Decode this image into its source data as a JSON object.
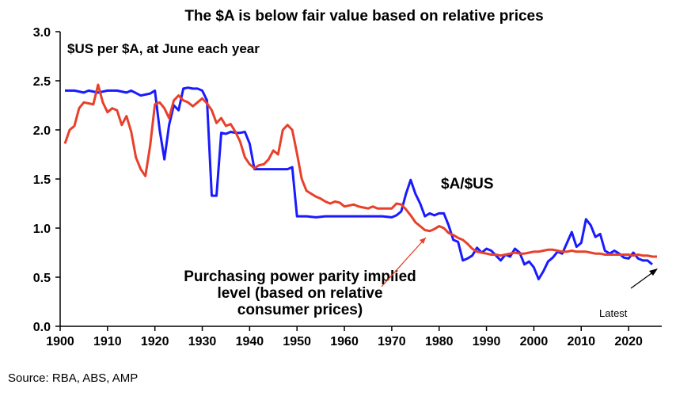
{
  "chart_data": {
    "type": "line",
    "title": "The $A is below fair value based on relative prices",
    "subtitle": "$US per $A, at June each year",
    "ylim": [
      0,
      3.0
    ],
    "yticks": [
      "0.0",
      "0.5",
      "1.0",
      "1.5",
      "2.0",
      "2.5",
      "3.0"
    ],
    "xlim": [
      1900,
      2027
    ],
    "xticks": [
      "1900",
      "1910",
      "1920",
      "1930",
      "1940",
      "1950",
      "1960",
      "1970",
      "1980",
      "1990",
      "2000",
      "2010",
      "2020"
    ],
    "grid": false,
    "series": [
      {
        "name": "$A/$US",
        "color": "#1a1aff",
        "points": [
          [
            1901,
            2.4
          ],
          [
            1903,
            2.4
          ],
          [
            1905,
            2.38
          ],
          [
            1906,
            2.4
          ],
          [
            1908,
            2.38
          ],
          [
            1910,
            2.4
          ],
          [
            1912,
            2.4
          ],
          [
            1914,
            2.38
          ],
          [
            1915,
            2.4
          ],
          [
            1917,
            2.35
          ],
          [
            1919,
            2.37
          ],
          [
            1920,
            2.4
          ],
          [
            1921,
            2.0
          ],
          [
            1922,
            1.7
          ],
          [
            1923,
            2.05
          ],
          [
            1924,
            2.25
          ],
          [
            1925,
            2.2
          ],
          [
            1926,
            2.42
          ],
          [
            1927,
            2.43
          ],
          [
            1928,
            2.42
          ],
          [
            1929,
            2.42
          ],
          [
            1930,
            2.4
          ],
          [
            1931,
            2.3
          ],
          [
            1932,
            1.33
          ],
          [
            1933,
            1.33
          ],
          [
            1934,
            1.97
          ],
          [
            1935,
            1.96
          ],
          [
            1936,
            1.98
          ],
          [
            1937,
            1.97
          ],
          [
            1938,
            1.97
          ],
          [
            1939,
            1.98
          ],
          [
            1940,
            1.86
          ],
          [
            1941,
            1.6
          ],
          [
            1942,
            1.6
          ],
          [
            1944,
            1.6
          ],
          [
            1946,
            1.6
          ],
          [
            1948,
            1.6
          ],
          [
            1949,
            1.62
          ],
          [
            1950,
            1.12
          ],
          [
            1952,
            1.12
          ],
          [
            1954,
            1.11
          ],
          [
            1956,
            1.12
          ],
          [
            1958,
            1.12
          ],
          [
            1960,
            1.12
          ],
          [
            1962,
            1.12
          ],
          [
            1964,
            1.12
          ],
          [
            1966,
            1.12
          ],
          [
            1968,
            1.12
          ],
          [
            1970,
            1.11
          ],
          [
            1971,
            1.13
          ],
          [
            1972,
            1.17
          ],
          [
            1973,
            1.35
          ],
          [
            1974,
            1.49
          ],
          [
            1975,
            1.35
          ],
          [
            1976,
            1.25
          ],
          [
            1977,
            1.12
          ],
          [
            1978,
            1.15
          ],
          [
            1979,
            1.13
          ],
          [
            1980,
            1.15
          ],
          [
            1981,
            1.15
          ],
          [
            1982,
            1.03
          ],
          [
            1983,
            0.88
          ],
          [
            1984,
            0.86
          ],
          [
            1985,
            0.67
          ],
          [
            1986,
            0.69
          ],
          [
            1987,
            0.72
          ],
          [
            1988,
            0.8
          ],
          [
            1989,
            0.75
          ],
          [
            1990,
            0.79
          ],
          [
            1991,
            0.77
          ],
          [
            1992,
            0.72
          ],
          [
            1993,
            0.67
          ],
          [
            1994,
            0.73
          ],
          [
            1995,
            0.71
          ],
          [
            1996,
            0.79
          ],
          [
            1997,
            0.75
          ],
          [
            1998,
            0.63
          ],
          [
            1999,
            0.66
          ],
          [
            2000,
            0.6
          ],
          [
            2001,
            0.48
          ],
          [
            2002,
            0.56
          ],
          [
            2003,
            0.66
          ],
          [
            2004,
            0.7
          ],
          [
            2005,
            0.76
          ],
          [
            2006,
            0.74
          ],
          [
            2007,
            0.85
          ],
          [
            2008,
            0.96
          ],
          [
            2009,
            0.81
          ],
          [
            2010,
            0.85
          ],
          [
            2011,
            1.09
          ],
          [
            2012,
            1.03
          ],
          [
            2013,
            0.91
          ],
          [
            2014,
            0.94
          ],
          [
            2015,
            0.77
          ],
          [
            2016,
            0.74
          ],
          [
            2017,
            0.77
          ],
          [
            2018,
            0.74
          ],
          [
            2019,
            0.7
          ],
          [
            2020,
            0.69
          ],
          [
            2021,
            0.75
          ],
          [
            2022,
            0.69
          ],
          [
            2023,
            0.67
          ],
          [
            2024,
            0.67
          ],
          [
            2025,
            0.63
          ]
        ]
      },
      {
        "name": "Purchasing power parity implied level (based on relative consumer prices)",
        "color": "#e8402a",
        "points": [
          [
            1901,
            1.86
          ],
          [
            1902,
            2.0
          ],
          [
            1903,
            2.04
          ],
          [
            1904,
            2.22
          ],
          [
            1905,
            2.28
          ],
          [
            1906,
            2.27
          ],
          [
            1907,
            2.26
          ],
          [
            1908,
            2.46
          ],
          [
            1909,
            2.28
          ],
          [
            1910,
            2.18
          ],
          [
            1911,
            2.22
          ],
          [
            1912,
            2.2
          ],
          [
            1913,
            2.05
          ],
          [
            1914,
            2.14
          ],
          [
            1915,
            1.98
          ],
          [
            1916,
            1.72
          ],
          [
            1917,
            1.6
          ],
          [
            1918,
            1.53
          ],
          [
            1919,
            1.84
          ],
          [
            1920,
            2.26
          ],
          [
            1921,
            2.28
          ],
          [
            1922,
            2.22
          ],
          [
            1923,
            2.12
          ],
          [
            1924,
            2.3
          ],
          [
            1925,
            2.35
          ],
          [
            1926,
            2.3
          ],
          [
            1927,
            2.28
          ],
          [
            1928,
            2.24
          ],
          [
            1929,
            2.28
          ],
          [
            1930,
            2.32
          ],
          [
            1931,
            2.27
          ],
          [
            1932,
            2.2
          ],
          [
            1933,
            2.07
          ],
          [
            1934,
            2.12
          ],
          [
            1935,
            2.04
          ],
          [
            1936,
            2.06
          ],
          [
            1937,
            1.98
          ],
          [
            1938,
            1.88
          ],
          [
            1939,
            1.72
          ],
          [
            1940,
            1.65
          ],
          [
            1941,
            1.61
          ],
          [
            1942,
            1.64
          ],
          [
            1943,
            1.65
          ],
          [
            1944,
            1.7
          ],
          [
            1945,
            1.79
          ],
          [
            1946,
            1.75
          ],
          [
            1947,
            2.0
          ],
          [
            1948,
            2.05
          ],
          [
            1949,
            2.0
          ],
          [
            1950,
            1.76
          ],
          [
            1951,
            1.5
          ],
          [
            1952,
            1.38
          ],
          [
            1953,
            1.35
          ],
          [
            1954,
            1.32
          ],
          [
            1955,
            1.3
          ],
          [
            1956,
            1.27
          ],
          [
            1957,
            1.25
          ],
          [
            1958,
            1.27
          ],
          [
            1959,
            1.26
          ],
          [
            1960,
            1.22
          ],
          [
            1961,
            1.23
          ],
          [
            1962,
            1.24
          ],
          [
            1963,
            1.22
          ],
          [
            1964,
            1.21
          ],
          [
            1965,
            1.2
          ],
          [
            1966,
            1.22
          ],
          [
            1967,
            1.2
          ],
          [
            1968,
            1.2
          ],
          [
            1969,
            1.2
          ],
          [
            1970,
            1.2
          ],
          [
            1971,
            1.25
          ],
          [
            1972,
            1.24
          ],
          [
            1973,
            1.19
          ],
          [
            1974,
            1.13
          ],
          [
            1975,
            1.06
          ],
          [
            1976,
            1.02
          ],
          [
            1977,
            0.98
          ],
          [
            1978,
            0.97
          ],
          [
            1979,
            0.99
          ],
          [
            1980,
            1.02
          ],
          [
            1981,
            1.0
          ],
          [
            1982,
            0.95
          ],
          [
            1983,
            0.93
          ],
          [
            1984,
            0.9
          ],
          [
            1985,
            0.88
          ],
          [
            1986,
            0.84
          ],
          [
            1987,
            0.79
          ],
          [
            1988,
            0.76
          ],
          [
            1989,
            0.75
          ],
          [
            1990,
            0.74
          ],
          [
            1991,
            0.73
          ],
          [
            1992,
            0.73
          ],
          [
            1993,
            0.72
          ],
          [
            1994,
            0.73
          ],
          [
            1995,
            0.74
          ],
          [
            1996,
            0.75
          ],
          [
            1997,
            0.74
          ],
          [
            1998,
            0.74
          ],
          [
            1999,
            0.75
          ],
          [
            2000,
            0.76
          ],
          [
            2001,
            0.76
          ],
          [
            2002,
            0.77
          ],
          [
            2003,
            0.78
          ],
          [
            2004,
            0.78
          ],
          [
            2005,
            0.77
          ],
          [
            2006,
            0.76
          ],
          [
            2007,
            0.76
          ],
          [
            2008,
            0.77
          ],
          [
            2009,
            0.76
          ],
          [
            2010,
            0.76
          ],
          [
            2011,
            0.76
          ],
          [
            2012,
            0.75
          ],
          [
            2013,
            0.74
          ],
          [
            2014,
            0.74
          ],
          [
            2015,
            0.73
          ],
          [
            2016,
            0.73
          ],
          [
            2017,
            0.73
          ],
          [
            2018,
            0.73
          ],
          [
            2019,
            0.73
          ],
          [
            2020,
            0.73
          ],
          [
            2021,
            0.72
          ],
          [
            2022,
            0.73
          ],
          [
            2023,
            0.72
          ],
          [
            2024,
            0.72
          ],
          [
            2025,
            0.71
          ],
          [
            2026,
            0.71
          ]
        ]
      }
    ],
    "annotations": {
      "blue_label": "$A/$US",
      "red_label_lines": [
        "Purchasing power parity implied",
        "level (based on relative",
        "consumer prices)"
      ],
      "latest_label": "Latest"
    }
  },
  "source": "Source: RBA, ABS, AMP"
}
